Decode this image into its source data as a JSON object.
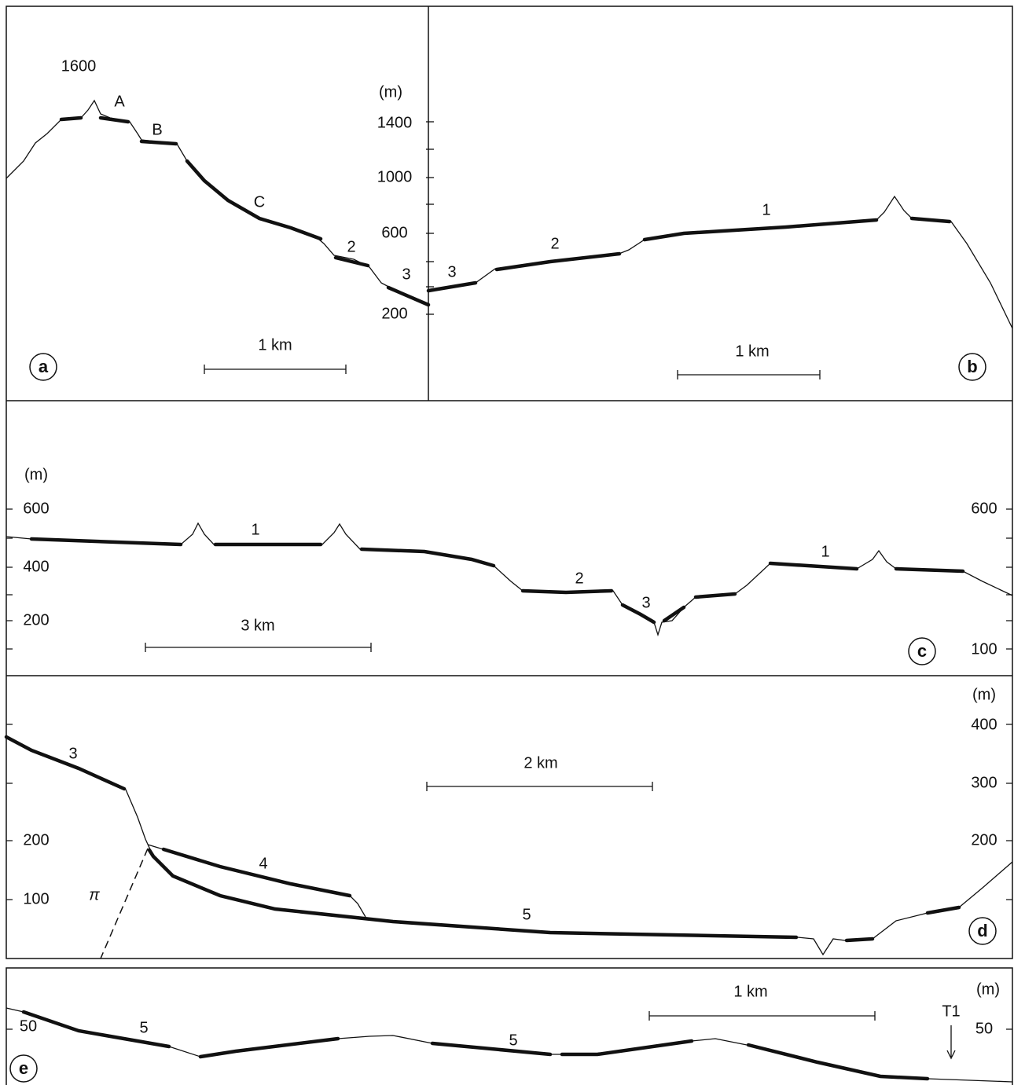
{
  "panels": [
    {
      "letter": "a",
      "unit": "(m)",
      "ticks": [
        1400,
        1000,
        600,
        200
      ],
      "peak": 1600,
      "labels": [
        "A",
        "B",
        "C",
        "2",
        "3"
      ],
      "scale": "1 km"
    },
    {
      "letter": "b",
      "labels": [
        "3",
        "2",
        "1"
      ],
      "scale": "1 km"
    },
    {
      "letter": "c",
      "unit": "(m)",
      "left_ticks": [
        600,
        400,
        200
      ],
      "right_ticks": [
        600,
        100
      ],
      "labels": [
        "1",
        "2",
        "3",
        "1"
      ],
      "scale": "3 km"
    },
    {
      "letter": "d",
      "unit": "(m)",
      "right_ticks": [
        400,
        300,
        200
      ],
      "left_ticks": [
        200,
        100
      ],
      "labels": [
        "3",
        "4",
        "5",
        "π"
      ],
      "scale": "2 km"
    },
    {
      "letter": "e",
      "unit": "(m)",
      "left_ticks": [
        50
      ],
      "right_ticks": [
        50
      ],
      "labels": [
        "5",
        "5",
        "T1"
      ],
      "scale": "1 km"
    }
  ]
}
